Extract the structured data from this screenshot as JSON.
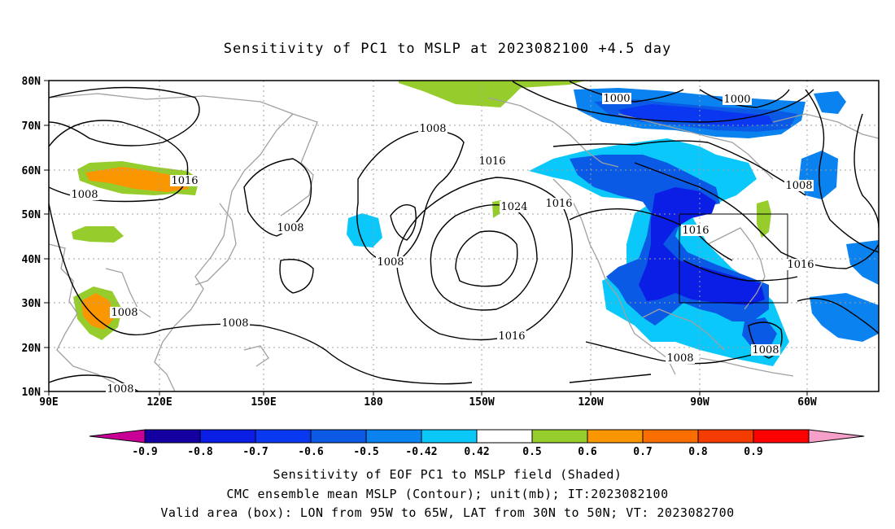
{
  "title": "Sensitivity of PC1 to MSLP at 2023082100 +4.5 day",
  "axes": {
    "lat_ticks": [
      "80N",
      "70N",
      "60N",
      "50N",
      "40N",
      "30N",
      "20N",
      "10N"
    ],
    "lon_ticks": [
      "90E",
      "120E",
      "150E",
      "180",
      "150W",
      "120W",
      "90W",
      "60W"
    ]
  },
  "colorbar": {
    "labels": [
      "-0.9",
      "-0.8",
      "-0.7",
      "-0.6",
      "-0.5",
      "-0.42",
      "0.42",
      "0.5",
      "0.6",
      "0.7",
      "0.8",
      "0.9"
    ],
    "colors": [
      "#1400a0",
      "#0a1ee6",
      "#0a37f0",
      "#0a5ae6",
      "#0a82f0",
      "#0ac8fa",
      "#ffffff",
      "#96cd2d",
      "#fa9600",
      "#fa6e00",
      "#f53c00",
      "#ff0000"
    ],
    "low_end_color": "#c80096",
    "high_end_color": "#f5a0c8"
  },
  "contour_labels": [
    "1000",
    "1000",
    "1008",
    "1008",
    "1008",
    "1008",
    "1008",
    "1008",
    "1008",
    "1008",
    "1008",
    "1016",
    "1016",
    "1016",
    "1016",
    "1016",
    "1016",
    "1024",
    "1008"
  ],
  "box": {
    "lon_from": "95W",
    "lon_to": "65W",
    "lat_from": "30N",
    "lat_to": "50N"
  },
  "captions": [
    "Sensitivity of EOF PC1 to MSLP field (Shaded)",
    "CMC ensemble mean MSLP (Contour); unit(mb); IT:2023082100",
    "Valid area (box): LON from 95W to 65W, LAT from 30N to 50N; VT: 2023082700"
  ],
  "colors": {
    "coast": "#a0a0a0",
    "contour": "#000000",
    "grid": "#a0a0a0"
  }
}
